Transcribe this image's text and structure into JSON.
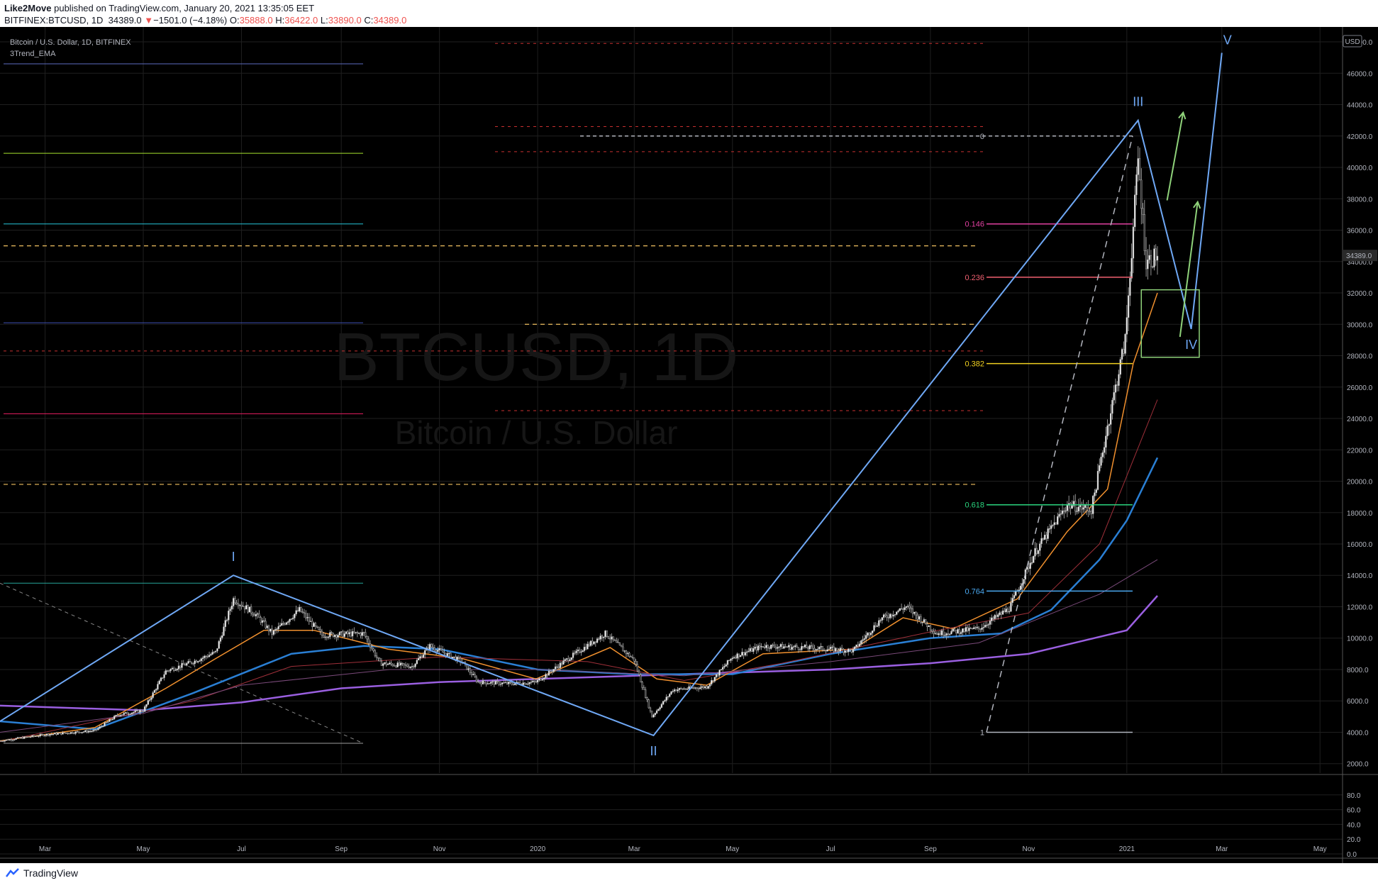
{
  "header": {
    "author": "Like2Move",
    "published": "published on TradingView.com, January 20, 2021 13:35:05 EET",
    "symbol": "BITFINEX:BTCUSD, 1D",
    "last": "34389.0",
    "arrow": "▼",
    "change": "−1501.0 (−4.18%)",
    "o_label": "O:",
    "o": "35888.0",
    "h_label": "H:",
    "h": "36422.0",
    "l_label": "L:",
    "l": "33890.0",
    "c_label": "C:",
    "c": "34389.0"
  },
  "legend": {
    "title": "Bitcoin / U.S. Dollar, 1D, BITFINEX",
    "indicator": "3Trend_EMA"
  },
  "watermark": {
    "main": "BTCUSD, 1D",
    "sub": "Bitcoin / U.S. Dollar"
  },
  "currency_badge": "USD",
  "price_badge": "34389.0",
  "footer": {
    "brand": "TradingView"
  },
  "colors": {
    "background": "#000000",
    "grid": "#1f1f1f",
    "wave_line": "#6fa8f5",
    "ema_blue": "#2a7fd4",
    "ema_purple": "#9a5fe0",
    "ema_orange": "#f0902e",
    "ema_green": "#6bbf59",
    "fib_0146": "#e040a0",
    "fib_0236": "#f06070",
    "fib_0382": "#f0d020",
    "fib_0618": "#2ad47e",
    "fib_0764": "#4aa8f0"
  },
  "chart_data": {
    "type": "candlestick",
    "title": "Bitcoin / U.S. Dollar, 1D, BITFINEX",
    "y_axis": {
      "scale": "linear",
      "range": [
        1400,
        48500
      ],
      "ticks": [
        "2000.0",
        "4000.0",
        "6000.0",
        "8000.0",
        "10000.0",
        "12000.0",
        "14000.0",
        "16000.0",
        "18000.0",
        "20000.0",
        "22000.0",
        "24000.0",
        "26000.0",
        "28000.0",
        "30000.0",
        "32000.0",
        "34000.0",
        "36000.0",
        "38000.0",
        "40000.0",
        "42000.0",
        "44000.0",
        "46000.0",
        "48000.0"
      ]
    },
    "x_axis": {
      "range": [
        "2019-02-01",
        "2021-05-15"
      ],
      "ticks": [
        {
          "label": "Mar",
          "date": "2019-03-01"
        },
        {
          "label": "May",
          "date": "2019-05-01"
        },
        {
          "label": "Jul",
          "date": "2019-07-01"
        },
        {
          "label": "Sep",
          "date": "2019-09-01"
        },
        {
          "label": "Nov",
          "date": "2019-11-01"
        },
        {
          "label": "2020",
          "date": "2020-01-01"
        },
        {
          "label": "Mar",
          "date": "2020-03-01"
        },
        {
          "label": "May",
          "date": "2020-05-01"
        },
        {
          "label": "Jul",
          "date": "2020-07-01"
        },
        {
          "label": "Sep",
          "date": "2020-09-01"
        },
        {
          "label": "Nov",
          "date": "2020-11-01"
        },
        {
          "label": "2021",
          "date": "2021-01-01"
        },
        {
          "label": "Mar",
          "date": "2021-03-01"
        },
        {
          "label": "May",
          "date": "2021-05-01"
        }
      ]
    },
    "price_path": [
      [
        "2019-02-01",
        3450
      ],
      [
        "2019-03-01",
        3850
      ],
      [
        "2019-04-01",
        4100
      ],
      [
        "2019-04-15",
        5100
      ],
      [
        "2019-05-01",
        5400
      ],
      [
        "2019-05-15",
        7900
      ],
      [
        "2019-06-01",
        8500
      ],
      [
        "2019-06-15",
        9100
      ],
      [
        "2019-06-26",
        12500
      ],
      [
        "2019-07-10",
        11500
      ],
      [
        "2019-07-20",
        10300
      ],
      [
        "2019-08-06",
        11800
      ],
      [
        "2019-08-20",
        10200
      ],
      [
        "2019-09-15",
        10300
      ],
      [
        "2019-09-25",
        8400
      ],
      [
        "2019-10-15",
        8200
      ],
      [
        "2019-10-26",
        9500
      ],
      [
        "2019-11-15",
        8500
      ],
      [
        "2019-11-25",
        7200
      ],
      [
        "2019-12-15",
        7100
      ],
      [
        "2019-12-31",
        7200
      ],
      [
        "2020-01-20",
        8700
      ],
      [
        "2020-02-12",
        10300
      ],
      [
        "2020-03-01",
        8600
      ],
      [
        "2020-03-12",
        5000
      ],
      [
        "2020-03-25",
        6700
      ],
      [
        "2020-04-15",
        6900
      ],
      [
        "2020-05-01",
        8800
      ],
      [
        "2020-05-20",
        9500
      ],
      [
        "2020-06-15",
        9400
      ],
      [
        "2020-07-15",
        9200
      ],
      [
        "2020-08-01",
        11200
      ],
      [
        "2020-08-17",
        12000
      ],
      [
        "2020-09-05",
        10300
      ],
      [
        "2020-10-01",
        10600
      ],
      [
        "2020-10-20",
        11900
      ],
      [
        "2020-11-05",
        15500
      ],
      [
        "2020-11-25",
        18500
      ],
      [
        "2020-12-10",
        18200
      ],
      [
        "2020-12-20",
        23500
      ],
      [
        "2020-12-31",
        29000
      ],
      [
        "2021-01-08",
        40500
      ],
      [
        "2021-01-13",
        34000
      ],
      [
        "2021-01-20",
        34389
      ]
    ],
    "series": [
      {
        "name": "3Trend_EMA",
        "values": [
          [
            "2019-02-01",
            5700
          ],
          [
            "2019-05-01",
            5400
          ],
          [
            "2019-07-01",
            5900
          ],
          [
            "2019-09-01",
            6800
          ],
          [
            "2019-11-01",
            7200
          ],
          [
            "2020-01-01",
            7400
          ],
          [
            "2020-03-01",
            7600
          ],
          [
            "2020-05-01",
            7800
          ],
          [
            "2020-07-01",
            8000
          ],
          [
            "2020-09-01",
            8400
          ],
          [
            "2020-11-01",
            9000
          ],
          [
            "2021-01-01",
            10500
          ],
          [
            "2021-01-20",
            12700
          ]
        ]
      },
      {
        "values": [
          [
            "2019-02-01",
            4700
          ],
          [
            "2019-04-01",
            4200
          ],
          [
            "2019-06-01",
            6500
          ],
          [
            "2019-08-01",
            9000
          ],
          [
            "2019-09-15",
            9500
          ],
          [
            "2019-11-01",
            9300
          ],
          [
            "2020-01-01",
            8000
          ],
          [
            "2020-03-01",
            7700
          ],
          [
            "2020-05-01",
            7700
          ],
          [
            "2020-07-01",
            9000
          ],
          [
            "2020-09-01",
            10000
          ],
          [
            "2020-10-15",
            10300
          ],
          [
            "2020-11-15",
            11800
          ],
          [
            "2020-12-15",
            15000
          ],
          [
            "2021-01-01",
            17500
          ],
          [
            "2021-01-20",
            21500
          ]
        ]
      },
      {
        "values": [
          [
            "2019-02-01",
            3450
          ],
          [
            "2019-04-01",
            4300
          ],
          [
            "2019-05-15",
            6800
          ],
          [
            "2019-06-15",
            8700
          ],
          [
            "2019-07-15",
            10500
          ],
          [
            "2019-08-15",
            10500
          ],
          [
            "2019-09-30",
            9300
          ],
          [
            "2019-11-15",
            8700
          ],
          [
            "2019-12-31",
            7400
          ],
          [
            "2020-02-15",
            9400
          ],
          [
            "2020-03-15",
            7400
          ],
          [
            "2020-04-15",
            7000
          ],
          [
            "2020-05-20",
            9000
          ],
          [
            "2020-07-15",
            9300
          ],
          [
            "2020-08-15",
            11300
          ],
          [
            "2020-09-15",
            10600
          ],
          [
            "2020-10-25",
            12500
          ],
          [
            "2020-11-25",
            16800
          ],
          [
            "2020-12-20",
            19500
          ],
          [
            "2021-01-05",
            27500
          ],
          [
            "2021-01-20",
            32000
          ]
        ]
      }
    ],
    "fib_retracement": {
      "levels": [
        {
          "label": "0",
          "price": 42000
        },
        {
          "label": "0.146",
          "price": 36400
        },
        {
          "label": "0.236",
          "price": 33000
        },
        {
          "label": "0.382",
          "price": 27500
        },
        {
          "label": "0.618",
          "price": 18500
        },
        {
          "label": "0.764",
          "price": 13000
        },
        {
          "label": "1",
          "price": 4000
        }
      ]
    },
    "elliott_waves": [
      {
        "label": "I",
        "date": "2019-06-26",
        "price": 14000
      },
      {
        "label": "II",
        "date": "2020-03-13",
        "price": 3800
      },
      {
        "label": "III",
        "date": "2021-01-08",
        "price": 43000
      },
      {
        "label": "IV",
        "date": "2021-02-10",
        "price": 29700
      },
      {
        "label": "V",
        "date": "2021-03-01",
        "price": 47300
      }
    ],
    "wave_start": {
      "date": "2019-02-01",
      "price": 4700
    },
    "horizontal_levels": [
      46600,
      40900,
      36400,
      30100,
      24300,
      13500,
      3300
    ],
    "dashed_levels": [
      35000,
      30000,
      19800
    ],
    "red_dashed_levels": [
      47900,
      42600,
      41000,
      28300,
      24500
    ]
  }
}
